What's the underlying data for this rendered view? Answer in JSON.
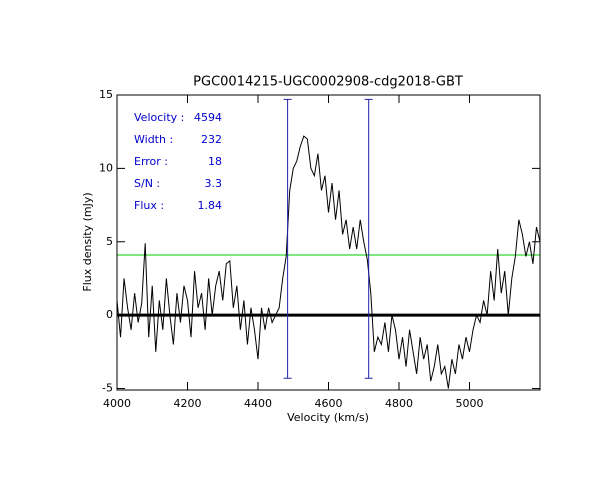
{
  "chart_data": {
    "type": "line",
    "title": "PGC0014215-UGC0002908-cdg2018-GBT",
    "xlabel": "Velocity (km/s)",
    "ylabel": "Flux density (mJy)",
    "xlim": [
      4000,
      5200
    ],
    "xticks": [
      4000,
      4200,
      4400,
      4600,
      4800,
      5000
    ],
    "ylim": [
      -5.1,
      15
    ],
    "yticks": [
      -5,
      0,
      5,
      10,
      15
    ],
    "color": "#000000",
    "annotations": [
      {
        "label": "Velocity :",
        "value": 4594
      },
      {
        "label": "Width :",
        "value": 232
      },
      {
        "label": "Error :",
        "value": 18
      },
      {
        "label": "S/N :",
        "value": 3.3
      },
      {
        "label": "Flux :",
        "value": 1.84
      }
    ],
    "annotation_color": "#0000cc",
    "vlines": {
      "x": [
        4484,
        4714
      ],
      "ymin": -4.3,
      "ymax": 14.7,
      "color": "#2222aa"
    },
    "hlines": [
      {
        "y": 4.1,
        "color": "#00cc00",
        "width": 1
      },
      {
        "y": 0,
        "color": "#000000",
        "width": 3
      }
    ],
    "x": [
      4000,
      4010,
      4020,
      4030,
      4040,
      4050,
      4060,
      4070,
      4080,
      4090,
      4100,
      4110,
      4120,
      4130,
      4140,
      4150,
      4160,
      4170,
      4180,
      4190,
      4200,
      4210,
      4220,
      4230,
      4240,
      4250,
      4260,
      4270,
      4280,
      4290,
      4300,
      4310,
      4320,
      4330,
      4340,
      4350,
      4360,
      4370,
      4380,
      4390,
      4400,
      4410,
      4420,
      4430,
      4440,
      4450,
      4460,
      4470,
      4480,
      4490,
      4500,
      4510,
      4520,
      4530,
      4540,
      4550,
      4560,
      4570,
      4580,
      4590,
      4600,
      4610,
      4620,
      4630,
      4640,
      4650,
      4660,
      4670,
      4680,
      4690,
      4700,
      4710,
      4720,
      4730,
      4740,
      4750,
      4760,
      4770,
      4780,
      4790,
      4800,
      4810,
      4820,
      4830,
      4840,
      4850,
      4860,
      4870,
      4880,
      4890,
      4900,
      4910,
      4920,
      4930,
      4940,
      4950,
      4960,
      4970,
      4980,
      4990,
      5000,
      5010,
      5020,
      5030,
      5040,
      5050,
      5060,
      5070,
      5080,
      5090,
      5100,
      5110,
      5120,
      5130,
      5140,
      5150,
      5160,
      5170,
      5180,
      5190,
      5200
    ],
    "values": [
      1.0,
      -1.5,
      2.5,
      0.5,
      -1.0,
      1.5,
      -0.5,
      0.8,
      4.9,
      -1.5,
      2.0,
      -2.5,
      1.0,
      -1.0,
      2.5,
      0.0,
      -2.0,
      1.5,
      -0.5,
      2.0,
      1.0,
      -1.5,
      3.0,
      0.5,
      1.5,
      -1.0,
      2.5,
      0.0,
      2.0,
      3.0,
      1.0,
      3.5,
      3.7,
      0.5,
      2.0,
      -1.0,
      1.0,
      -2.0,
      0.5,
      -1.0,
      -3.0,
      0.5,
      -1.0,
      0.5,
      -0.5,
      0.0,
      0.5,
      2.5,
      4.0,
      8.5,
      10.0,
      10.5,
      11.5,
      12.2,
      12.0,
      10.0,
      9.5,
      11.0,
      8.5,
      9.5,
      7.0,
      9.0,
      6.5,
      8.5,
      5.5,
      6.5,
      4.5,
      6.0,
      4.5,
      6.5,
      5.0,
      3.8,
      1.5,
      -2.5,
      -1.5,
      -2.0,
      -0.5,
      -2.5,
      0.0,
      -1.0,
      -3.0,
      -1.5,
      -3.5,
      -1.0,
      -2.5,
      -4.0,
      -1.5,
      -3.0,
      -2.0,
      -4.5,
      -3.5,
      -2.0,
      -4.0,
      -3.5,
      -5.0,
      -3.0,
      -4.0,
      -2.0,
      -3.0,
      -1.5,
      -2.5,
      -1.0,
      0.0,
      -0.5,
      1.0,
      0.0,
      3.0,
      1.0,
      4.5,
      1.5,
      3.0,
      0.0,
      2.5,
      4.0,
      6.5,
      5.5,
      4.0,
      5.0,
      3.5,
      6.0,
      5.0
    ]
  }
}
